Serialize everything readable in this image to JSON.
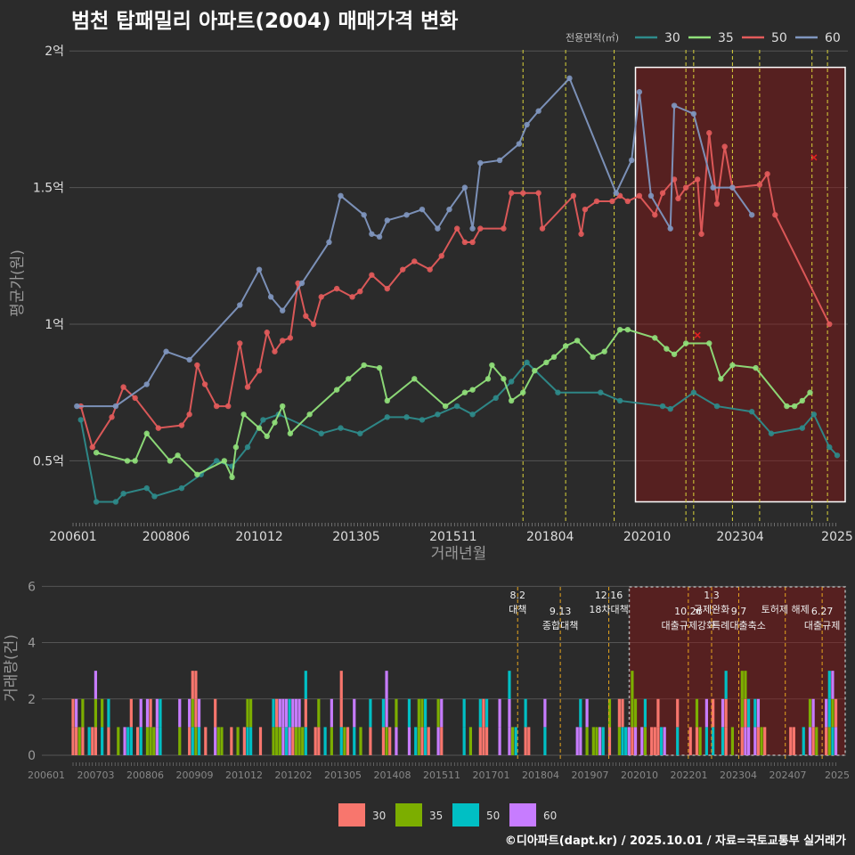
{
  "title": "범천 탑패밀리 아파트(2004) 매매가격 변화",
  "credit": "©디아파트(dapt.kr) / 2025.10.01 / 자료=국토교통부 실거래가",
  "chart_data": [
    {
      "type": "line",
      "title": "범천 탑패밀리 아파트(2004) 매매가격 변화",
      "xlabel": "거래년월",
      "ylabel": "평균가(원)",
      "xlim": [
        2006.0,
        2025.7
      ],
      "ylim": [
        0.27,
        2.03
      ],
      "y_unit": "억",
      "x_ticks": [
        {
          "t": 2006.0,
          "label": "200601"
        },
        {
          "t": 2008.4,
          "label": "200806"
        },
        {
          "t": 2010.8,
          "label": "201012"
        },
        {
          "t": 2013.3,
          "label": "201305"
        },
        {
          "t": 2015.8,
          "label": "201511"
        },
        {
          "t": 2018.3,
          "label": "201804"
        },
        {
          "t": 2020.8,
          "label": "202010"
        },
        {
          "t": 2023.2,
          "label": "202304"
        },
        {
          "t": 2025.7,
          "label": "2025"
        }
      ],
      "y_ticks": [
        {
          "v": 0.5,
          "label": "0.5억"
        },
        {
          "v": 1.0,
          "label": "1억"
        },
        {
          "v": 1.5,
          "label": "1.5억"
        },
        {
          "v": 2.0,
          "label": "2억"
        }
      ],
      "legend": {
        "title": "전용면적(㎡)",
        "position": "top-right",
        "entries": [
          "30",
          "35",
          "50",
          "60"
        ]
      },
      "grid": true,
      "policy_lines": [
        2017.6,
        2018.7,
        2019.95,
        2021.8,
        2022.0,
        2023.0,
        2023.7,
        2025.05,
        2025.45
      ],
      "highlight_box": {
        "x_from": 2020.5,
        "x_to": 2025.7,
        "y_from": 0.35,
        "y_to": 1.94
      },
      "series": [
        {
          "name": "30",
          "color": "#2e8b8b",
          "points": [
            [
              2006.2,
              0.65
            ],
            [
              2006.6,
              0.35
            ],
            [
              2007.1,
              0.35
            ],
            [
              2007.3,
              0.38
            ],
            [
              2007.9,
              0.4
            ],
            [
              2008.1,
              0.37
            ],
            [
              2008.8,
              0.4
            ],
            [
              2009.3,
              0.45
            ],
            [
              2009.7,
              0.5
            ],
            [
              2010.1,
              0.48
            ],
            [
              2010.5,
              0.55
            ],
            [
              2010.9,
              0.65
            ],
            [
              2011.3,
              0.67
            ],
            [
              2012.4,
              0.6
            ],
            [
              2012.9,
              0.62
            ],
            [
              2013.4,
              0.6
            ],
            [
              2014.1,
              0.66
            ],
            [
              2014.6,
              0.66
            ],
            [
              2015.0,
              0.65
            ],
            [
              2015.4,
              0.67
            ],
            [
              2015.9,
              0.7
            ],
            [
              2016.3,
              0.67
            ],
            [
              2016.9,
              0.73
            ],
            [
              2017.3,
              0.79
            ],
            [
              2017.7,
              0.86
            ],
            [
              2018.5,
              0.75
            ],
            [
              2019.6,
              0.75
            ],
            [
              2020.1,
              0.72
            ],
            [
              2021.2,
              0.7
            ],
            [
              2021.4,
              0.69
            ],
            [
              2022.0,
              0.75
            ],
            [
              2022.6,
              0.7
            ],
            [
              2023.5,
              0.68
            ],
            [
              2024.0,
              0.6
            ],
            [
              2024.8,
              0.62
            ],
            [
              2025.1,
              0.67
            ],
            [
              2025.5,
              0.55
            ],
            [
              2025.7,
              0.52
            ]
          ]
        },
        {
          "name": "35",
          "color": "#90e07a",
          "points": [
            [
              2006.6,
              0.53
            ],
            [
              2007.4,
              0.5
            ],
            [
              2007.6,
              0.5
            ],
            [
              2007.9,
              0.6
            ],
            [
              2008.5,
              0.5
            ],
            [
              2008.7,
              0.52
            ],
            [
              2009.2,
              0.45
            ],
            [
              2009.9,
              0.5
            ],
            [
              2010.1,
              0.44
            ],
            [
              2010.2,
              0.55
            ],
            [
              2010.4,
              0.67
            ],
            [
              2010.8,
              0.62
            ],
            [
              2011.0,
              0.59
            ],
            [
              2011.2,
              0.64
            ],
            [
              2011.4,
              0.7
            ],
            [
              2011.6,
              0.6
            ],
            [
              2012.1,
              0.67
            ],
            [
              2012.8,
              0.76
            ],
            [
              2013.1,
              0.8
            ],
            [
              2013.5,
              0.85
            ],
            [
              2013.9,
              0.84
            ],
            [
              2014.1,
              0.72
            ],
            [
              2014.8,
              0.8
            ],
            [
              2015.6,
              0.7
            ],
            [
              2016.1,
              0.75
            ],
            [
              2016.3,
              0.76
            ],
            [
              2016.7,
              0.8
            ],
            [
              2016.8,
              0.85
            ],
            [
              2017.1,
              0.8
            ],
            [
              2017.3,
              0.72
            ],
            [
              2017.6,
              0.75
            ],
            [
              2017.9,
              0.83
            ],
            [
              2018.2,
              0.86
            ],
            [
              2018.4,
              0.88
            ],
            [
              2018.7,
              0.92
            ],
            [
              2019.0,
              0.94
            ],
            [
              2019.4,
              0.88
            ],
            [
              2019.7,
              0.9
            ],
            [
              2020.1,
              0.98
            ],
            [
              2020.3,
              0.98
            ],
            [
              2021.0,
              0.95
            ],
            [
              2021.3,
              0.91
            ],
            [
              2021.5,
              0.89
            ],
            [
              2021.8,
              0.93
            ],
            [
              2022.4,
              0.93
            ],
            [
              2022.7,
              0.8
            ],
            [
              2023.0,
              0.85
            ],
            [
              2023.6,
              0.84
            ],
            [
              2024.4,
              0.7
            ],
            [
              2024.6,
              0.7
            ],
            [
              2024.8,
              0.72
            ],
            [
              2025.0,
              0.75
            ]
          ]
        },
        {
          "name": "50",
          "color": "#e35b5b",
          "points": [
            [
              2006.2,
              0.7
            ],
            [
              2006.5,
              0.55
            ],
            [
              2007.0,
              0.66
            ],
            [
              2007.3,
              0.77
            ],
            [
              2007.6,
              0.73
            ],
            [
              2008.2,
              0.62
            ],
            [
              2008.8,
              0.63
            ],
            [
              2009.0,
              0.67
            ],
            [
              2009.2,
              0.85
            ],
            [
              2009.4,
              0.78
            ],
            [
              2009.7,
              0.7
            ],
            [
              2010.0,
              0.7
            ],
            [
              2010.3,
              0.93
            ],
            [
              2010.5,
              0.77
            ],
            [
              2010.8,
              0.83
            ],
            [
              2011.0,
              0.97
            ],
            [
              2011.2,
              0.9
            ],
            [
              2011.4,
              0.94
            ],
            [
              2011.6,
              0.95
            ],
            [
              2011.8,
              1.15
            ],
            [
              2012.0,
              1.03
            ],
            [
              2012.2,
              1.0
            ],
            [
              2012.4,
              1.1
            ],
            [
              2012.8,
              1.13
            ],
            [
              2013.2,
              1.1
            ],
            [
              2013.4,
              1.12
            ],
            [
              2013.7,
              1.18
            ],
            [
              2014.1,
              1.13
            ],
            [
              2014.5,
              1.2
            ],
            [
              2014.8,
              1.23
            ],
            [
              2015.2,
              1.2
            ],
            [
              2015.5,
              1.25
            ],
            [
              2015.9,
              1.35
            ],
            [
              2016.1,
              1.3
            ],
            [
              2016.3,
              1.3
            ],
            [
              2016.5,
              1.35
            ],
            [
              2017.1,
              1.35
            ],
            [
              2017.3,
              1.48
            ],
            [
              2017.6,
              1.48
            ],
            [
              2018.0,
              1.48
            ],
            [
              2018.1,
              1.35
            ],
            [
              2018.9,
              1.47
            ],
            [
              2019.1,
              1.33
            ],
            [
              2019.2,
              1.42
            ],
            [
              2019.5,
              1.45
            ],
            [
              2019.9,
              1.45
            ],
            [
              2020.1,
              1.47
            ],
            [
              2020.3,
              1.45
            ],
            [
              2020.6,
              1.47
            ],
            [
              2021.0,
              1.4
            ],
            [
              2021.2,
              1.48
            ],
            [
              2021.5,
              1.53
            ],
            [
              2021.6,
              1.46
            ],
            [
              2021.8,
              1.5
            ],
            [
              2022.1,
              1.53
            ],
            [
              2022.2,
              1.33
            ],
            [
              2022.4,
              1.7
            ],
            [
              2022.6,
              1.44
            ],
            [
              2022.8,
              1.65
            ],
            [
              2023.0,
              1.5
            ],
            [
              2023.7,
              1.51
            ],
            [
              2023.9,
              1.55
            ],
            [
              2024.1,
              1.4
            ],
            [
              2025.5,
              1.0
            ]
          ]
        },
        {
          "name": "60",
          "color": "#7f96bf",
          "points": [
            [
              2006.1,
              0.7
            ],
            [
              2007.1,
              0.7
            ],
            [
              2007.9,
              0.78
            ],
            [
              2008.4,
              0.9
            ],
            [
              2009.0,
              0.87
            ],
            [
              2010.3,
              1.07
            ],
            [
              2010.8,
              1.2
            ],
            [
              2011.1,
              1.1
            ],
            [
              2011.4,
              1.05
            ],
            [
              2011.9,
              1.15
            ],
            [
              2012.6,
              1.3
            ],
            [
              2012.9,
              1.47
            ],
            [
              2013.5,
              1.4
            ],
            [
              2013.7,
              1.33
            ],
            [
              2013.9,
              1.32
            ],
            [
              2014.1,
              1.38
            ],
            [
              2014.6,
              1.4
            ],
            [
              2015.0,
              1.42
            ],
            [
              2015.4,
              1.35
            ],
            [
              2015.7,
              1.42
            ],
            [
              2016.1,
              1.5
            ],
            [
              2016.3,
              1.35
            ],
            [
              2016.5,
              1.59
            ],
            [
              2017.0,
              1.6
            ],
            [
              2017.5,
              1.66
            ],
            [
              2017.7,
              1.73
            ],
            [
              2018.0,
              1.78
            ],
            [
              2018.8,
              1.9
            ],
            [
              2020.0,
              1.48
            ],
            [
              2020.4,
              1.6
            ],
            [
              2020.6,
              1.85
            ],
            [
              2020.9,
              1.47
            ],
            [
              2021.4,
              1.35
            ],
            [
              2021.5,
              1.8
            ],
            [
              2022.0,
              1.77
            ],
            [
              2022.5,
              1.5
            ],
            [
              2023.0,
              1.5
            ],
            [
              2023.5,
              1.4
            ]
          ]
        }
      ]
    },
    {
      "type": "bar",
      "xlabel": "",
      "ylabel": "거래량(건)",
      "ylim": [
        0,
        6.2
      ],
      "stacked": true,
      "x_ticks": [
        "200601",
        "200703",
        "200806",
        "200909",
        "201012",
        "201202",
        "201305",
        "201408",
        "201511",
        "201701",
        "201804",
        "201907",
        "202010",
        "202201",
        "202304",
        "202407",
        "2025"
      ],
      "y_ticks": [
        0,
        2,
        4,
        6
      ],
      "legend": {
        "position": "bottom",
        "entries": [
          "30",
          "35",
          "50",
          "60"
        ]
      },
      "colors": {
        "30": "#f8766d",
        "35": "#7cae00",
        "50": "#00bfc4",
        "60": "#c77cff"
      },
      "annotations": [
        {
          "date": "8.2",
          "label": "대책"
        },
        {
          "date": "9.13",
          "label": "종합대책"
        },
        {
          "date": "12.16",
          "label": "18차대책"
        },
        {
          "date": "10.26",
          "label": "대출규제강화"
        },
        {
          "date": "1.3",
          "label": "규제완화"
        },
        {
          "date": "9.7",
          "label": "특례대출축소"
        },
        {
          "date": "",
          "label": "토허제 해제"
        },
        {
          "date": "6.27",
          "label": "대출규제"
        }
      ],
      "highlight_box": {
        "x_from": 2020.5,
        "x_to": 2025.7
      }
    }
  ]
}
